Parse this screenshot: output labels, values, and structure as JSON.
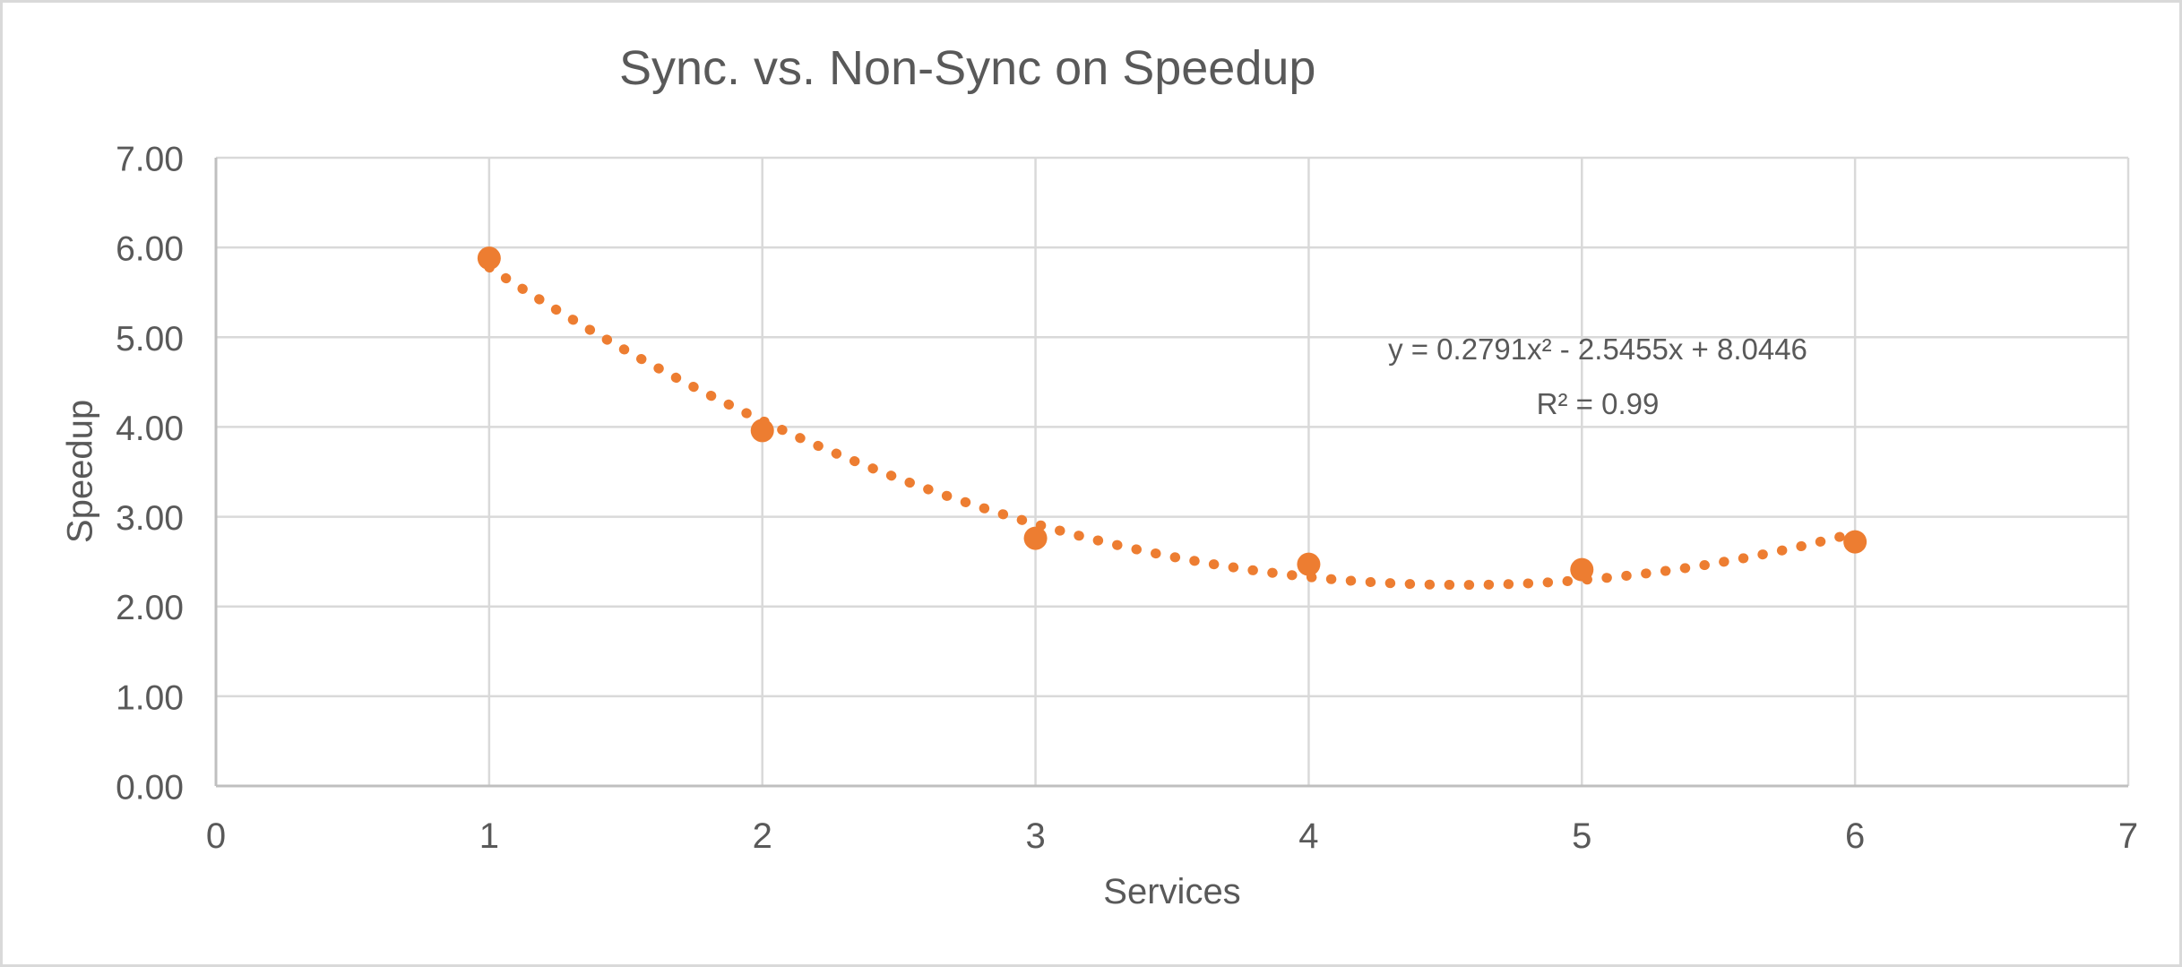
{
  "chart_data": {
    "type": "scatter",
    "title": "Sync. vs. Non-Sync on Speedup",
    "xlabel": "Services",
    "ylabel": "Speedup",
    "x": [
      1,
      2,
      3,
      4,
      5,
      6
    ],
    "y": [
      5.88,
      3.96,
      2.76,
      2.47,
      2.41,
      2.72
    ],
    "xlim": [
      0,
      7
    ],
    "ylim": [
      0,
      7
    ],
    "xticks": {
      "values": [
        0,
        1,
        2,
        3,
        4,
        5,
        6,
        7
      ],
      "labels": [
        "0",
        "1",
        "2",
        "3",
        "4",
        "5",
        "6",
        "7"
      ]
    },
    "yticks": {
      "values": [
        0,
        1,
        2,
        3,
        4,
        5,
        6,
        7
      ],
      "labels": [
        "0.00",
        "1.00",
        "2.00",
        "3.00",
        "4.00",
        "5.00",
        "6.00",
        "7.00"
      ]
    },
    "grid": true,
    "legend": "none",
    "marker": {
      "shape": "circle",
      "radius": 13
    },
    "trendline": {
      "kind": "polynomial",
      "order": 2,
      "coefficients": {
        "a": 0.2791,
        "b": -2.5455,
        "c": 8.0446
      },
      "x_range": [
        1,
        6
      ],
      "style": "dotted",
      "equation_label": "y = 0.2791x² - 2.5455x + 8.0446",
      "r_squared_label": "R² = 0.99"
    },
    "colors": {
      "series": "#ED7D31",
      "gridline": "#D9D9D9",
      "axis_line": "#BFBFBF",
      "text": "#595959",
      "background": "#FFFFFF",
      "border": "#D9D9D9"
    }
  }
}
